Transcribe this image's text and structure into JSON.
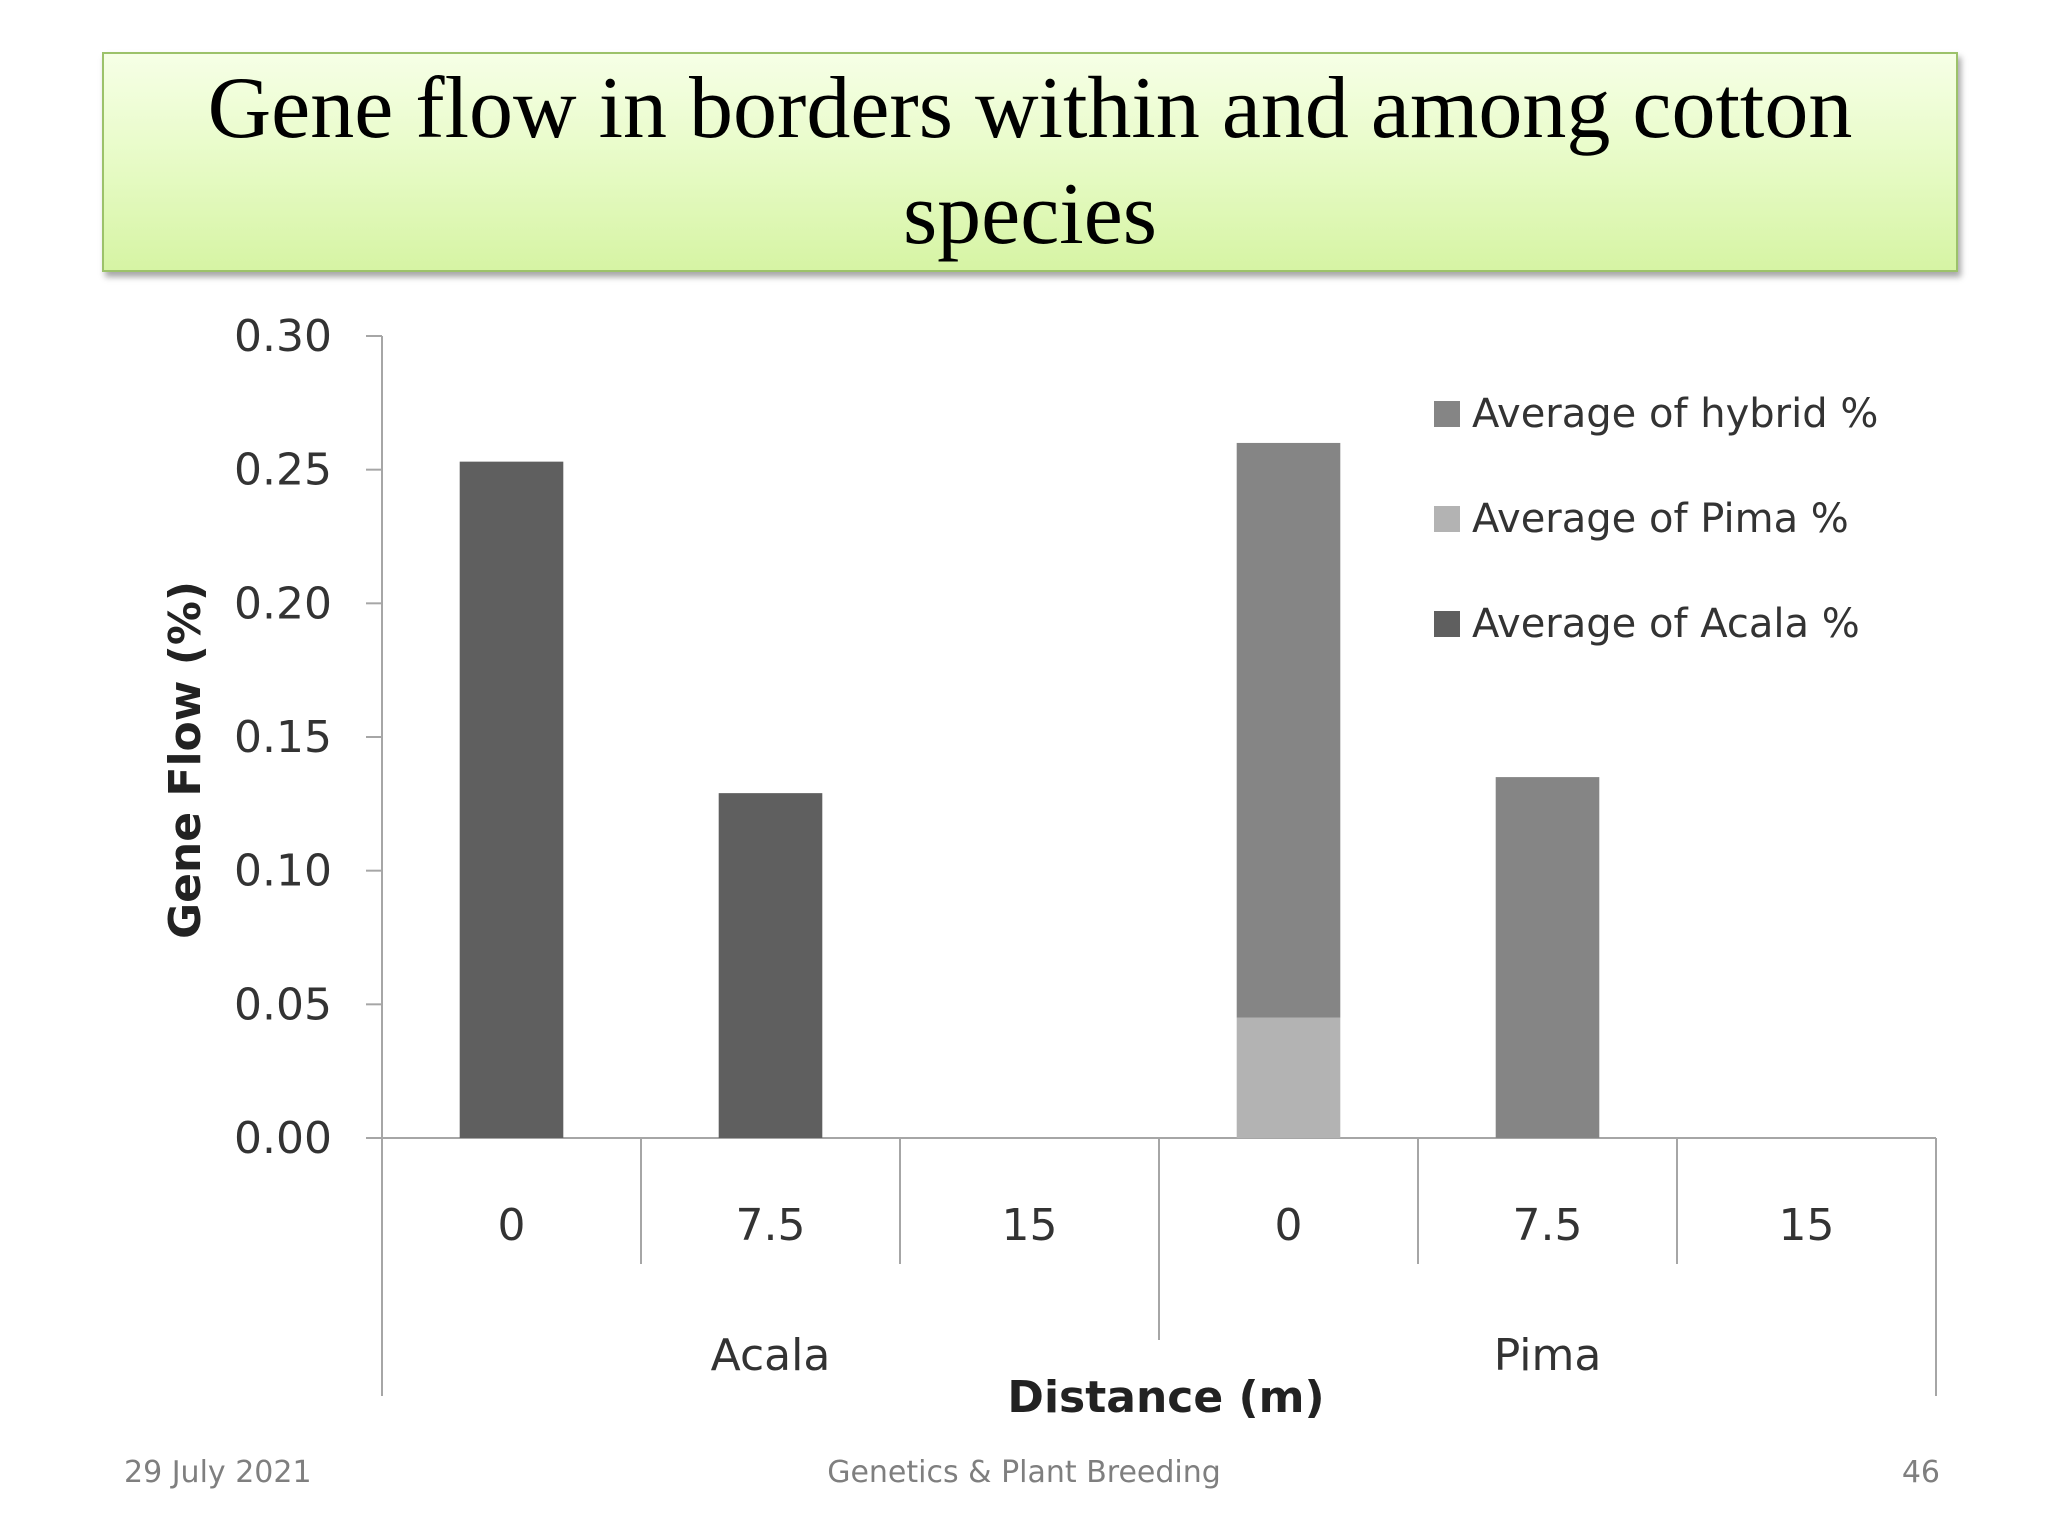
{
  "slide": {
    "title": "Gene flow in borders within and among cotton species",
    "footer_date": "29 July 2021",
    "footer_center": "Genetics & Plant Breeding",
    "page_number": "46"
  },
  "chart_data": {
    "type": "bar",
    "stacked": true,
    "groups": [
      {
        "name": "Acala",
        "categories": [
          "0",
          "7.5",
          "15"
        ]
      },
      {
        "name": "Pima",
        "categories": [
          "0",
          "7.5",
          "15"
        ]
      }
    ],
    "categories": [
      "0",
      "7.5",
      "15",
      "0",
      "7.5",
      "15"
    ],
    "series": [
      {
        "name": "Average of Acala %",
        "color": "#5f5f5f",
        "values": [
          0.253,
          0.129,
          0,
          0,
          0,
          0
        ]
      },
      {
        "name": "Average of Pima %",
        "color": "#b3b3b3",
        "values": [
          0,
          0,
          0,
          0.045,
          0,
          0
        ]
      },
      {
        "name": "Average of hybrid %",
        "color": "#858585",
        "values": [
          0,
          0,
          0,
          0.215,
          0.135,
          0
        ]
      }
    ],
    "legend_order": [
      "Average of hybrid %",
      "Average of Pima %",
      "Average of Acala %"
    ],
    "xlabel": "Distance (m)",
    "ylabel": "Gene Flow (%)",
    "ylim": [
      0,
      0.3
    ],
    "yticks": [
      "0.00",
      "0.05",
      "0.10",
      "0.15",
      "0.20",
      "0.25",
      "0.30"
    ],
    "grid": false,
    "legend_position": "top-right"
  }
}
